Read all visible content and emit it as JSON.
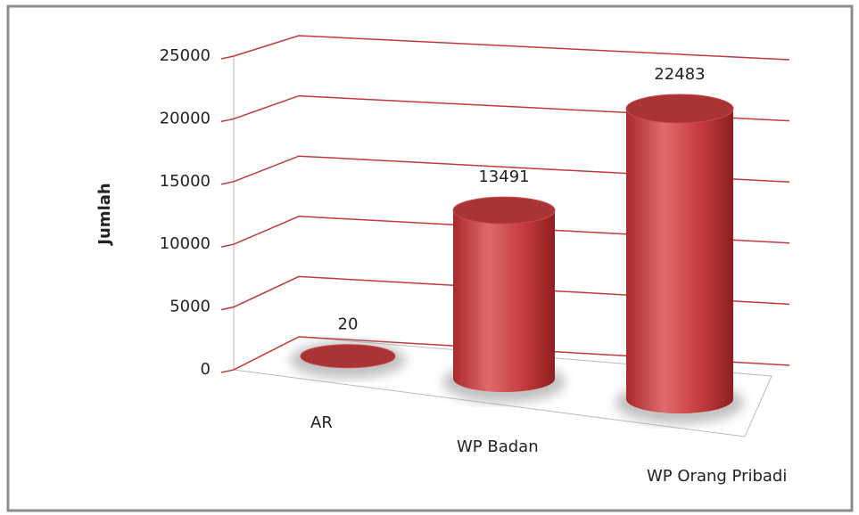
{
  "chart_data": {
    "type": "bar",
    "style": "3d-cylinder",
    "y_label": "Jumlah",
    "categories": [
      "AR",
      "WP Badan",
      "WP Orang Pribadi"
    ],
    "values": [
      20,
      13491,
      22483
    ],
    "color": "#c0393b",
    "ylim": [
      0,
      25000
    ],
    "yticks": [
      0,
      5000,
      10000,
      15000,
      20000,
      25000
    ],
    "grid": true
  }
}
